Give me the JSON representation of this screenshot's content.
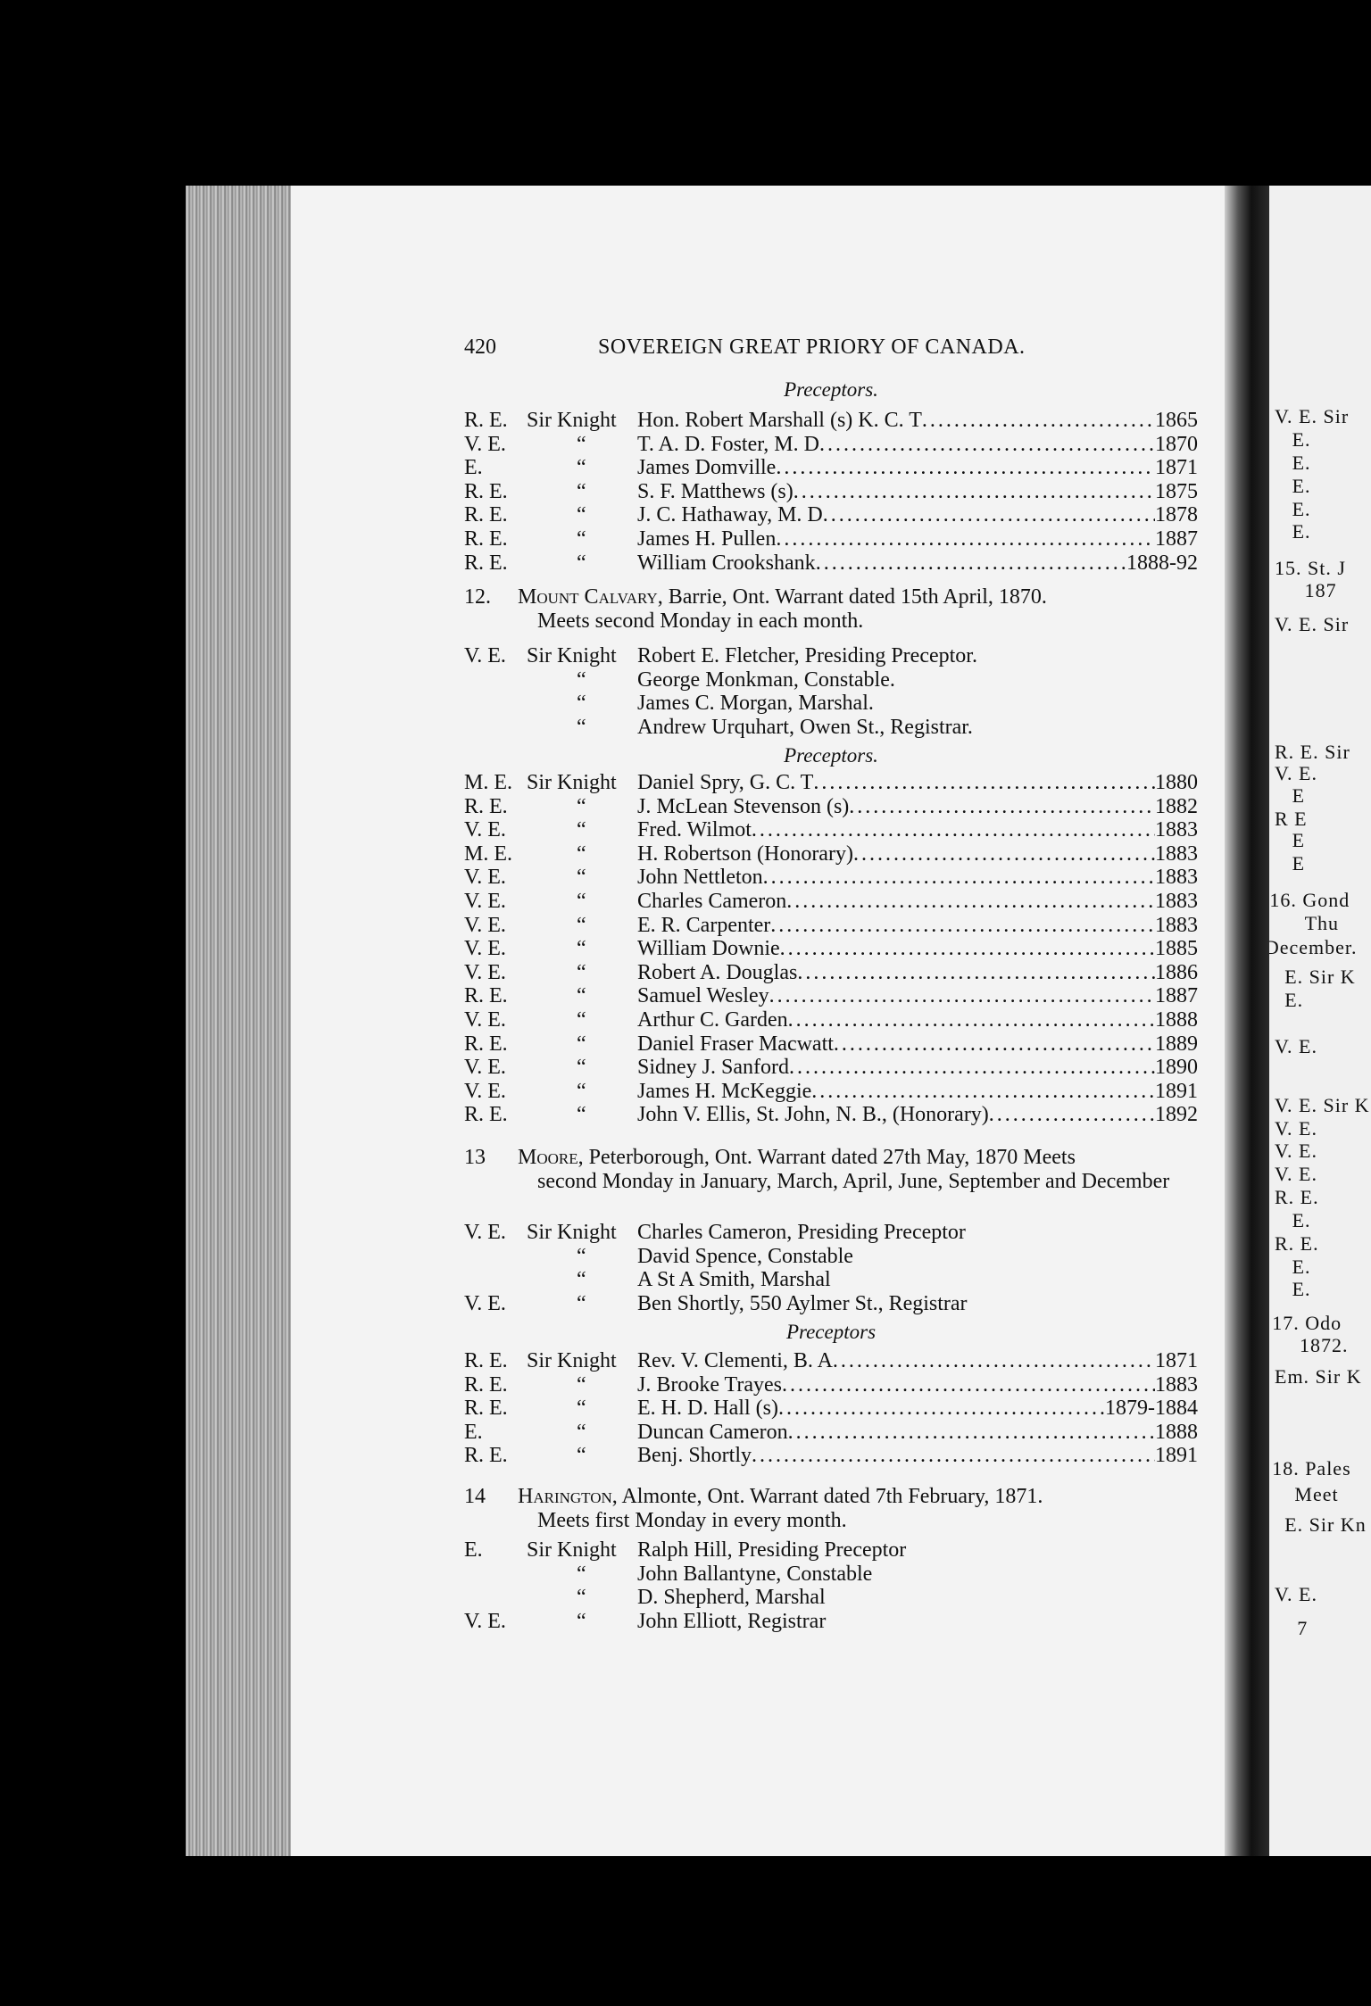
{
  "header": {
    "page_number": "420",
    "running_title": "SOVEREIGN GREAT PRIORY OF CANADA."
  },
  "sections": [
    {
      "id": "s0",
      "subhead": "Preceptors.",
      "rows": [
        {
          "rank": "R. E.",
          "title": "Sir Knight",
          "name": "Hon. Robert Marshall (s) K. C. T",
          "date": "1865"
        },
        {
          "rank": "V. E.",
          "title": "“",
          "name": "T. A. D. Foster, M. D",
          "date": "1870"
        },
        {
          "rank": "E.",
          "title": "“",
          "name": "James Domville",
          "date": "1871"
        },
        {
          "rank": "R. E.",
          "title": "“",
          "name": "S. F. Matthews (s)",
          "date": "1875"
        },
        {
          "rank": "R. E.",
          "title": "“",
          "name": "J. C. Hathaway, M. D",
          "date": "1878"
        },
        {
          "rank": "R. E.",
          "title": "“",
          "name": "James H. Pullen",
          "date": "1887"
        },
        {
          "rank": "R. E.",
          "title": "“",
          "name": "William Crookshank",
          "date": "1888-92"
        }
      ]
    }
  ],
  "preceptories": [
    {
      "number": "12.",
      "name": "Mount Calvary",
      "description_rest": ", Barrie, Ont.   Warrant dated 15th April, 1870.",
      "description_line2": "Meets second Monday in each month.",
      "officers": [
        {
          "rank": "V. E.",
          "title": "Sir Knight",
          "name": "Robert E. Fletcher, Presiding Preceptor."
        },
        {
          "rank": "",
          "title": "“",
          "name": "George Monkman, Constable."
        },
        {
          "rank": "",
          "title": "“",
          "name": "James C. Morgan, Marshal."
        },
        {
          "rank": "",
          "title": "“",
          "name": "Andrew Urquhart, Owen St., Registrar."
        }
      ],
      "subhead": "Preceptors.",
      "past": [
        {
          "rank": "M. E.",
          "title": "Sir Knight",
          "name": "Daniel Spry, G. C. T",
          "date": "1880"
        },
        {
          "rank": "R. E.",
          "title": "“",
          "name": "J. McLean Stevenson (s)",
          "date": "1882"
        },
        {
          "rank": "V. E.",
          "title": "“",
          "name": "Fred. Wilmot",
          "date": "1883"
        },
        {
          "rank": "M. E.",
          "title": "“",
          "name": "H. Robertson (Honorary)",
          "date": "1883"
        },
        {
          "rank": "V. E.",
          "title": "“",
          "name": "John Nettleton",
          "date": "1883"
        },
        {
          "rank": "V. E.",
          "title": "“",
          "name": "Charles Cameron",
          "date": "1883"
        },
        {
          "rank": "V. E.",
          "title": "“",
          "name": "E. R. Carpenter",
          "date": "1883"
        },
        {
          "rank": "V. E.",
          "title": "“",
          "name": "William Downie",
          "date": "1885"
        },
        {
          "rank": "V. E.",
          "title": "“",
          "name": "Robert A. Douglas",
          "date": "1886"
        },
        {
          "rank": "R. E.",
          "title": "“",
          "name": "Samuel Wesley",
          "date": "1887"
        },
        {
          "rank": "V. E.",
          "title": "“",
          "name": "Arthur C. Garden",
          "date": "1888"
        },
        {
          "rank": "R. E.",
          "title": "“",
          "name": "Daniel Fraser Macwatt",
          "date": "1889"
        },
        {
          "rank": "V. E.",
          "title": "“",
          "name": "Sidney J. Sanford",
          "date": "1890"
        },
        {
          "rank": "V. E.",
          "title": "“",
          "name": "James H. McKeggie",
          "date": "1891"
        },
        {
          "rank": "R. E.",
          "title": "“",
          "name": "John V. Ellis, St. John, N. B., (Honorary)",
          "date": "1892"
        }
      ]
    },
    {
      "number": "13",
      "name": "Moore",
      "description_rest": ", Peterborough, Ont.  Warrant dated 27th May, 1870  Meets",
      "description_line2": "second Monday in January, March, April, June, September and December",
      "officers": [
        {
          "rank": "V. E.",
          "title": "Sir Knight",
          "name": "Charles Cameron, Presiding Preceptor"
        },
        {
          "rank": "",
          "title": "“",
          "name": "David Spence, Constable"
        },
        {
          "rank": "",
          "title": "“",
          "name": "A St A Smith, Marshal"
        },
        {
          "rank": "V. E.",
          "title": "“",
          "name": "Ben Shortly, 550 Aylmer St., Registrar"
        }
      ],
      "subhead": "Preceptors",
      "past": [
        {
          "rank": "R. E.",
          "title": "Sir Knight",
          "name": "Rev. V. Clementi, B. A",
          "date": "1871"
        },
        {
          "rank": "R. E.",
          "title": "“",
          "name": "J. Brooke Trayes",
          "date": "1883"
        },
        {
          "rank": "R. E.",
          "title": "“",
          "name": "E. H. D. Hall (s)",
          "date": "1879-1884"
        },
        {
          "rank": "E.",
          "title": "“",
          "name": "Duncan Cameron",
          "date": "1888"
        },
        {
          "rank": "R. E.",
          "title": "“",
          "name": "Benj. Shortly",
          "date": "1891"
        }
      ]
    },
    {
      "number": "14",
      "name": "Harington",
      "description_rest": ", Almonte, Ont.   Warrant dated 7th February, 1871.",
      "description_line2": "Meets first Monday in every month.",
      "officers": [
        {
          "rank": "E.",
          "title": "Sir Knight",
          "name": "Ralph Hill, Presiding Preceptor"
        },
        {
          "rank": "",
          "title": "“",
          "name": "John Ballantyne, Constable"
        },
        {
          "rank": "",
          "title": "“",
          "name": "D. Shepherd, Marshal"
        },
        {
          "rank": "V. E.",
          "title": "“",
          "name": "John Elliott, Registrar"
        }
      ],
      "subhead": "",
      "past": []
    }
  ],
  "right_page": {
    "lines": [
      "V. E. Sir",
      "E.",
      "E.",
      "E.",
      "E.",
      "E.",
      "15.  St. J",
      "187",
      "V. E. Sir",
      "R. E. Sir",
      "V. E.",
      "E",
      "R  E",
      "E",
      "E",
      "16.  Gond",
      "Thu",
      "December.",
      "E. Sir K",
      "E.",
      "V. E.",
      "V. E. Sir K",
      "V. E.",
      "V. E.",
      "V. E.",
      "R. E.",
      "E.",
      "R. E.",
      "E.",
      "E.",
      "17.  Odo",
      "1872.",
      "Em. Sir K",
      "18.  Pales",
      "Meet",
      "E. Sir Kn",
      "V. E.",
      "7"
    ]
  }
}
